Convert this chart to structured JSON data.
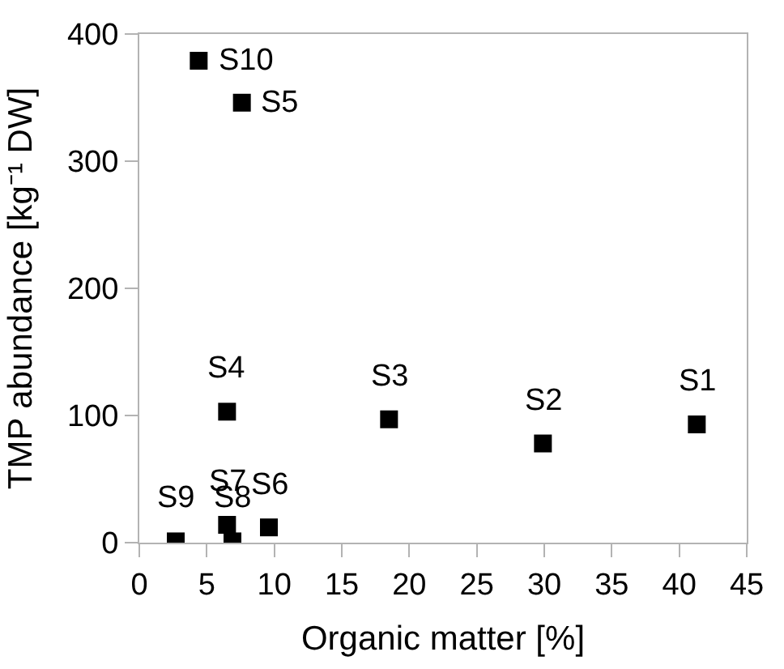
{
  "chart_data": {
    "type": "scatter",
    "xlabel": "Organic matter [%]",
    "ylabel": "TMP abundance [kg⁻¹ DW]",
    "xlim": [
      0,
      45
    ],
    "xticks": [
      0,
      5,
      10,
      15,
      20,
      25,
      30,
      35,
      40,
      45
    ],
    "ylim": [
      0,
      400
    ],
    "yticks": [
      0,
      100,
      200,
      300,
      400
    ],
    "grid": false,
    "marker": "square",
    "series": [
      {
        "color": "#000000",
        "x": [
          41.3,
          29.9,
          18.5,
          6.5,
          7.6,
          9.6,
          6.5,
          6.9,
          2.7,
          4.4
        ],
        "values": [
          93,
          78,
          97,
          103,
          346,
          12,
          14,
          1,
          1,
          379
        ]
      }
    ],
    "annotations": [
      {
        "text": "S1",
        "x": 41.3,
        "y": 93
      },
      {
        "text": "S2",
        "x": 29.9,
        "y": 78
      },
      {
        "text": "S3",
        "x": 18.5,
        "y": 97
      },
      {
        "text": "S4",
        "x": 6.5,
        "y": 103
      },
      {
        "text": "S5",
        "x": 7.6,
        "y": 346
      },
      {
        "text": "S6",
        "x": 9.6,
        "y": 12
      },
      {
        "text": "S7",
        "x": 6.5,
        "y": 14
      },
      {
        "text": "S8",
        "x": 6.9,
        "y": 1
      },
      {
        "text": "S9",
        "x": 2.7,
        "y": 1
      },
      {
        "text": "S10",
        "x": 4.4,
        "y": 379
      }
    ]
  }
}
